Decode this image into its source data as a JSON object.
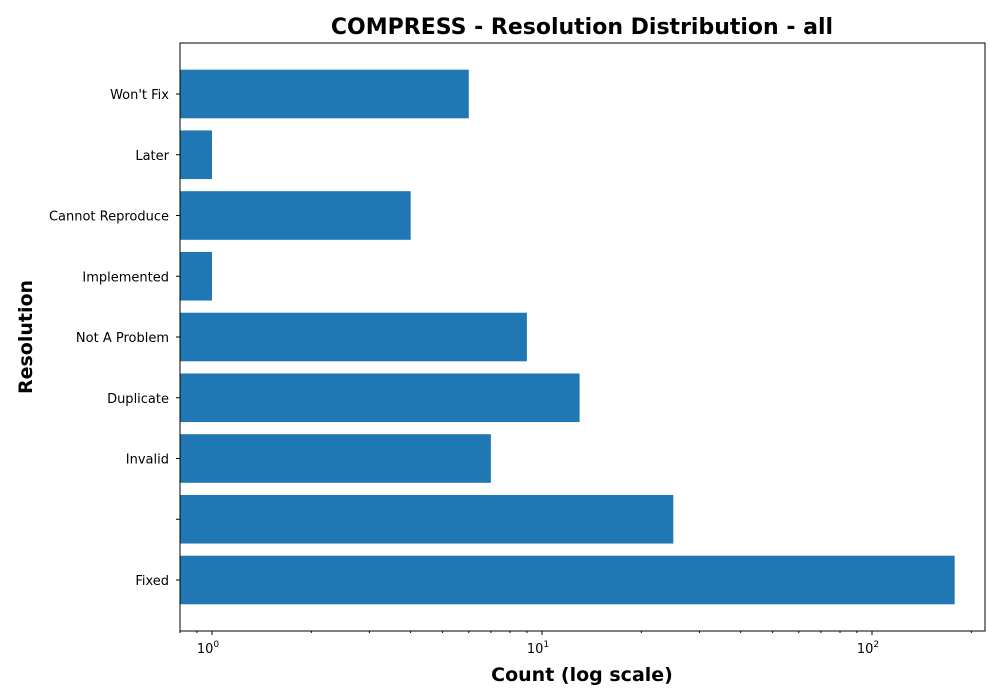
{
  "chart_data": {
    "type": "bar",
    "orientation": "horizontal",
    "title": "COMPRESS - Resolution Distribution - all",
    "xlabel": "Count (log scale)",
    "ylabel": "Resolution",
    "x_scale": "log",
    "xlim": [
      0.8,
      220
    ],
    "x_ticks": [
      {
        "value": 1,
        "mantissa": "10",
        "exp": "0"
      },
      {
        "value": 10,
        "mantissa": "10",
        "exp": "1"
      },
      {
        "value": 100,
        "mantissa": "10",
        "exp": "2"
      }
    ],
    "categories": [
      "Won't Fix",
      "Later",
      "Cannot Reproduce",
      "Implemented",
      "Not A Problem",
      "Duplicate",
      "Invalid",
      "",
      "Fixed"
    ],
    "values": [
      6,
      1,
      4,
      1,
      9,
      13,
      7,
      25,
      178
    ],
    "color": "#1f77b4",
    "grid": false,
    "legend": "none"
  }
}
